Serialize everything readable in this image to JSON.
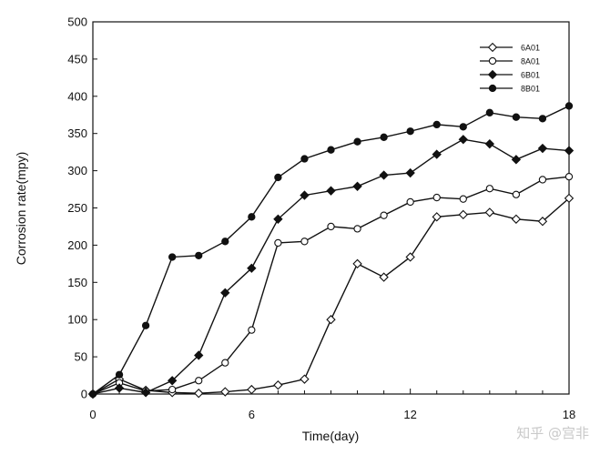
{
  "chart_data": {
    "type": "line",
    "title": "",
    "xlabel": "Time(day)",
    "ylabel": "Corrosion rate(mpy)",
    "xlim": [
      0,
      18
    ],
    "ylim": [
      0,
      500
    ],
    "xticks": [
      0,
      6,
      12,
      18
    ],
    "yticks": [
      0,
      50,
      100,
      150,
      200,
      250,
      300,
      350,
      400,
      450,
      500
    ],
    "grid": false,
    "legend_position": "top-right",
    "x": [
      0,
      1,
      2,
      3,
      4,
      5,
      6,
      7,
      8,
      9,
      10,
      11,
      12,
      13,
      14,
      15,
      16,
      17,
      18
    ],
    "series": [
      {
        "name": "6A01",
        "marker": "diamond-open",
        "values": [
          0,
          20,
          5,
          2,
          1,
          3,
          6,
          12,
          20,
          100,
          175,
          157,
          184,
          238,
          241,
          244,
          235,
          232,
          263
        ]
      },
      {
        "name": "8A01",
        "marker": "circle-open",
        "values": [
          0,
          15,
          4,
          6,
          18,
          42,
          86,
          203,
          205,
          225,
          222,
          240,
          258,
          264,
          262,
          276,
          268,
          288,
          292
        ]
      },
      {
        "name": "6B01",
        "marker": "diamond-filled",
        "values": [
          0,
          8,
          2,
          18,
          52,
          136,
          169,
          235,
          267,
          273,
          279,
          294,
          297,
          322,
          342,
          336,
          315,
          330,
          327
        ]
      },
      {
        "name": "8B01",
        "marker": "circle-filled",
        "values": [
          0,
          26,
          92,
          184,
          186,
          205,
          238,
          291,
          316,
          328,
          339,
          345,
          353,
          362,
          359,
          378,
          372,
          370,
          387
        ]
      }
    ]
  },
  "watermark": "知乎 @宫非"
}
